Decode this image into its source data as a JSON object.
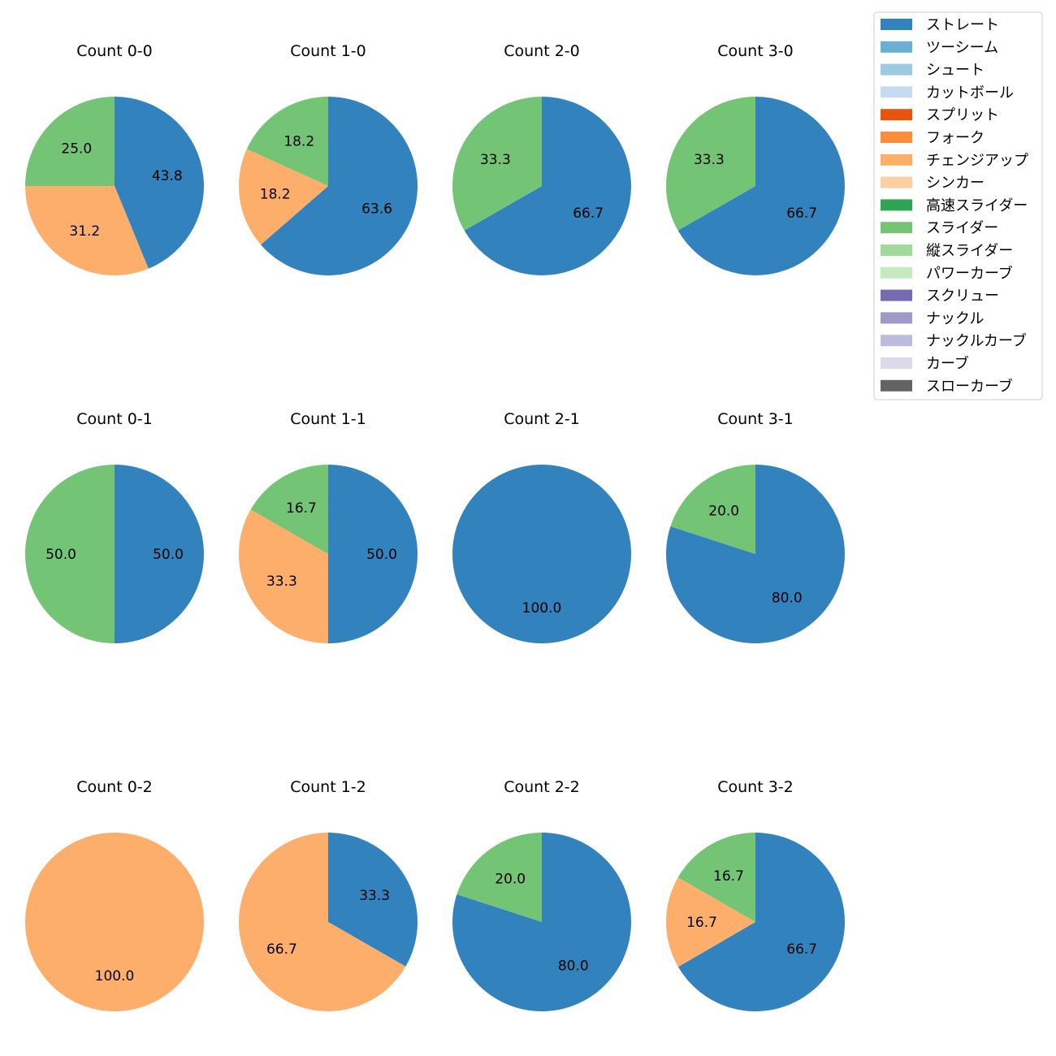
{
  "chart_data": {
    "type": "pie",
    "legend": {
      "placement": "top-right",
      "entries": [
        {
          "label": "ストレート",
          "color": "#3182bd"
        },
        {
          "label": "ツーシーム",
          "color": "#6baed6"
        },
        {
          "label": "シュート",
          "color": "#9ecae1"
        },
        {
          "label": "カットボール",
          "color": "#c6dbef"
        },
        {
          "label": "スプリット",
          "color": "#e6550d"
        },
        {
          "label": "フォーク",
          "color": "#fd8d3c"
        },
        {
          "label": "チェンジアップ",
          "color": "#fdae6b"
        },
        {
          "label": "シンカー",
          "color": "#fdd0a2"
        },
        {
          "label": "高速スライダー",
          "color": "#31a354"
        },
        {
          "label": "スライダー",
          "color": "#74c476"
        },
        {
          "label": "縦スライダー",
          "color": "#a1d99b"
        },
        {
          "label": "パワーカーブ",
          "color": "#c7e9c0"
        },
        {
          "label": "スクリュー",
          "color": "#756bb1"
        },
        {
          "label": "ナックル",
          "color": "#9e9ac8"
        },
        {
          "label": "ナックルカーブ",
          "color": "#bcbddc"
        },
        {
          "label": "カーブ",
          "color": "#dadaeb"
        },
        {
          "label": "スローカーブ",
          "color": "#636363"
        }
      ]
    },
    "pies": [
      {
        "title": "Count 0-0",
        "slices": [
          {
            "pitch": "ストレート",
            "value": 43.8,
            "label": "43.8"
          },
          {
            "pitch": "チェンジアップ",
            "value": 31.2,
            "label": "31.2"
          },
          {
            "pitch": "スライダー",
            "value": 25.0,
            "label": "25.0"
          }
        ]
      },
      {
        "title": "Count 1-0",
        "slices": [
          {
            "pitch": "ストレート",
            "value": 63.6,
            "label": "63.6"
          },
          {
            "pitch": "チェンジアップ",
            "value": 18.2,
            "label": "18.2"
          },
          {
            "pitch": "スライダー",
            "value": 18.2,
            "label": "18.2"
          }
        ]
      },
      {
        "title": "Count 2-0",
        "slices": [
          {
            "pitch": "ストレート",
            "value": 66.7,
            "label": "66.7"
          },
          {
            "pitch": "スライダー",
            "value": 33.3,
            "label": "33.3"
          }
        ]
      },
      {
        "title": "Count 3-0",
        "slices": [
          {
            "pitch": "ストレート",
            "value": 66.7,
            "label": "66.7"
          },
          {
            "pitch": "スライダー",
            "value": 33.3,
            "label": "33.3"
          }
        ]
      },
      {
        "title": "Count 0-1",
        "slices": [
          {
            "pitch": "ストレート",
            "value": 50.0,
            "label": "50.0"
          },
          {
            "pitch": "スライダー",
            "value": 50.0,
            "label": "50.0"
          }
        ]
      },
      {
        "title": "Count 1-1",
        "slices": [
          {
            "pitch": "ストレート",
            "value": 50.0,
            "label": "50.0"
          },
          {
            "pitch": "チェンジアップ",
            "value": 33.3,
            "label": "33.3"
          },
          {
            "pitch": "スライダー",
            "value": 16.7,
            "label": "16.7"
          }
        ]
      },
      {
        "title": "Count 2-1",
        "slices": [
          {
            "pitch": "ストレート",
            "value": 100.0,
            "label": "100.0"
          }
        ]
      },
      {
        "title": "Count 3-1",
        "slices": [
          {
            "pitch": "ストレート",
            "value": 80.0,
            "label": "80.0"
          },
          {
            "pitch": "スライダー",
            "value": 20.0,
            "label": "20.0"
          }
        ]
      },
      {
        "title": "Count 0-2",
        "slices": [
          {
            "pitch": "チェンジアップ",
            "value": 100.0,
            "label": "100.0"
          }
        ]
      },
      {
        "title": "Count 1-2",
        "slices": [
          {
            "pitch": "ストレート",
            "value": 33.3,
            "label": "33.3"
          },
          {
            "pitch": "チェンジアップ",
            "value": 66.7,
            "label": "66.7"
          }
        ]
      },
      {
        "title": "Count 2-2",
        "slices": [
          {
            "pitch": "ストレート",
            "value": 80.0,
            "label": "80.0"
          },
          {
            "pitch": "スライダー",
            "value": 20.0,
            "label": "20.0"
          }
        ]
      },
      {
        "title": "Count 3-2",
        "slices": [
          {
            "pitch": "ストレート",
            "value": 66.7,
            "label": "66.7"
          },
          {
            "pitch": "チェンジアップ",
            "value": 16.7,
            "label": "16.7"
          },
          {
            "pitch": "スライダー",
            "value": 16.7,
            "label": "16.7"
          }
        ]
      }
    ]
  }
}
